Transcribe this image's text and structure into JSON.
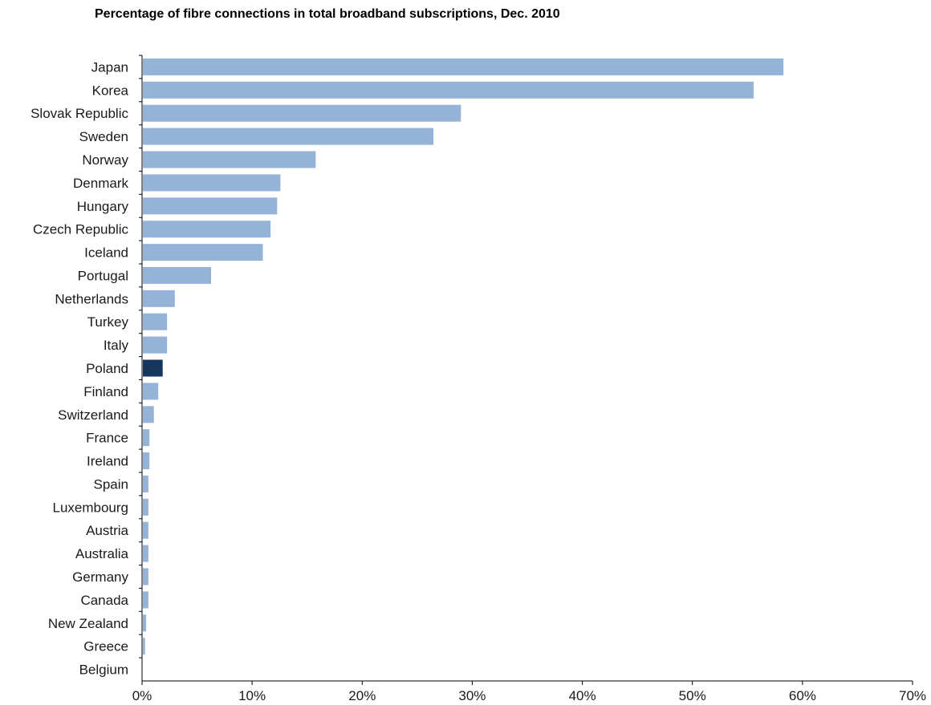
{
  "chart_data": {
    "type": "bar",
    "orientation": "horizontal",
    "title": "Percentage of fibre connections in total broadband subscriptions, Dec. 2010",
    "categories": [
      "Japan",
      "Korea",
      "Slovak Republic",
      "Sweden",
      "Norway",
      "Denmark",
      "Hungary",
      "Czech Republic",
      "Iceland",
      "Portugal",
      "Netherlands",
      "Turkey",
      "Italy",
      "Poland",
      "Finland",
      "Switzerland",
      "France",
      "Ireland",
      "Spain",
      "Luxembourg",
      "Austria",
      "Australia",
      "Germany",
      "Canada",
      "New Zealand",
      "Greece",
      "Belgium"
    ],
    "values": [
      58.2,
      55.5,
      28.9,
      26.4,
      15.7,
      12.5,
      12.2,
      11.6,
      10.9,
      6.2,
      2.9,
      2.2,
      2.2,
      1.8,
      1.4,
      1.0,
      0.6,
      0.6,
      0.5,
      0.5,
      0.5,
      0.5,
      0.5,
      0.5,
      0.3,
      0.2,
      0.0
    ],
    "highlight": "Poland",
    "xlim": [
      0,
      70
    ],
    "xticks": [
      0,
      10,
      20,
      30,
      40,
      50,
      60,
      70
    ],
    "xtick_labels": [
      "0%",
      "10%",
      "20%",
      "30%",
      "40%",
      "50%",
      "60%",
      "70%"
    ],
    "xlabel": "",
    "ylabel": "",
    "grid": false,
    "colors": {
      "bar": "#95b3d7",
      "highlight": "#17365d",
      "axis": "#000000"
    }
  }
}
